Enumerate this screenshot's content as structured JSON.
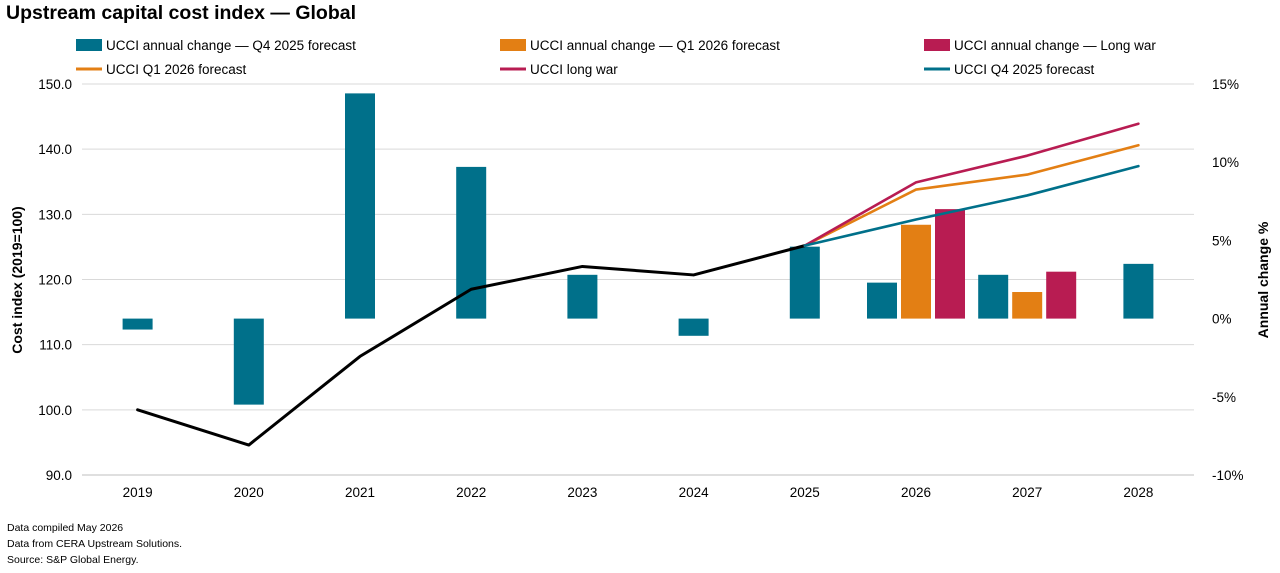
{
  "title": "Upstream capital cost index — Global",
  "footer": {
    "line1": "Data compiled May 2026",
    "line2": "Data from CERA Upstream Solutions.",
    "line3": "Source: S&P Global Energy."
  },
  "chart_data": {
    "type": "bar+line",
    "title": "Upstream capital cost index — Global",
    "categories": [
      "2019",
      "2020",
      "2021",
      "2022",
      "2023",
      "2024",
      "2025",
      "2026",
      "2027",
      "2028"
    ],
    "left_axis": {
      "label": "Cost index (2019=100)",
      "min": 90,
      "max": 150,
      "ticks": [
        "90.0",
        "100.0",
        "110.0",
        "120.0",
        "130.0",
        "140.0",
        "150.0"
      ],
      "tick_values": [
        90,
        100,
        110,
        120,
        130,
        140,
        150
      ]
    },
    "right_axis": {
      "label": "Annual change %",
      "min": -10,
      "max": 15,
      "ticks": [
        "-10%",
        "-5%",
        "0%",
        "5%",
        "10%",
        "15%"
      ],
      "tick_values": [
        -10,
        -5,
        0,
        5,
        10,
        15
      ]
    },
    "grid": true,
    "bar_series": [
      {
        "name": "UCCI annual change — Q4 2025 forecast",
        "color": "#00708a",
        "values": [
          -0.7,
          -5.5,
          14.4,
          9.7,
          2.8,
          -1.1,
          4.6,
          2.3,
          2.8,
          3.5
        ]
      },
      {
        "name": "UCCI annual change — Q1 2026 forecast",
        "color": "#e37f14",
        "values": [
          null,
          null,
          null,
          null,
          null,
          null,
          null,
          6.0,
          1.7,
          null
        ]
      },
      {
        "name": "UCCI annual change — Long war",
        "color": "#b81c52",
        "values": [
          null,
          null,
          null,
          null,
          null,
          null,
          null,
          7.0,
          3.0,
          null
        ]
      }
    ],
    "line_series": [
      {
        "name": "",
        "color": "#000000",
        "values": [
          100.0,
          94.6,
          108.2,
          118.5,
          122.0,
          120.7,
          125.2,
          null,
          null,
          null
        ]
      },
      {
        "name": "UCCI Q1 2026 forecast",
        "color": "#e37f14",
        "values": [
          null,
          null,
          null,
          null,
          null,
          null,
          125.2,
          133.8,
          136.1,
          140.6
        ]
      },
      {
        "name": "UCCI long war",
        "color": "#b81c52",
        "values": [
          null,
          null,
          null,
          null,
          null,
          null,
          125.2,
          134.9,
          139.0,
          143.9
        ]
      },
      {
        "name": "UCCI Q4 2025 forecast",
        "color": "#00708a",
        "values": [
          null,
          null,
          null,
          null,
          null,
          null,
          125.2,
          129.2,
          132.9,
          137.4
        ]
      }
    ],
    "legend": {
      "placement": "top",
      "items": [
        {
          "label": "UCCI annual change — Q4 2025 forecast",
          "kind": "bar",
          "color": "#00708a"
        },
        {
          "label": "UCCI annual change — Q1 2026 forecast",
          "kind": "bar",
          "color": "#e37f14"
        },
        {
          "label": "UCCI annual change — Long war",
          "kind": "bar",
          "color": "#b81c52"
        },
        {
          "label": "UCCI Q1 2026 forecast",
          "kind": "line",
          "color": "#e37f14"
        },
        {
          "label": "UCCI long war",
          "kind": "line",
          "color": "#b81c52"
        },
        {
          "label": "UCCI Q4 2025 forecast",
          "kind": "line",
          "color": "#00708a"
        }
      ]
    }
  }
}
